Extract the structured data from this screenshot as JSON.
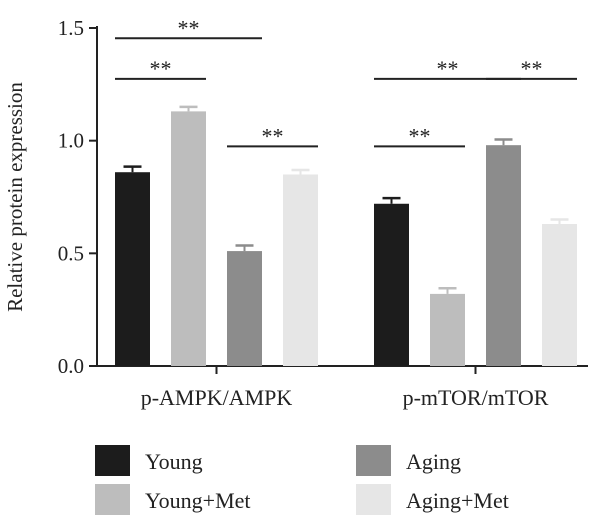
{
  "chart_data": {
    "type": "bar",
    "ylabel": "Relative protein expression",
    "xlabel": "",
    "ylim": [
      0,
      1.5
    ],
    "yticks": [
      "0.0",
      "0.5",
      "1.0",
      "1.5"
    ],
    "categories": [
      "p-AMPK/AMPK",
      "p-mTOR/mTOR"
    ],
    "series": [
      {
        "name": "Young",
        "color": "#1c1c1c",
        "values": [
          0.86,
          0.72
        ],
        "errors": [
          0.025,
          0.025
        ]
      },
      {
        "name": "Young+Met",
        "color": "#bdbdbd",
        "values": [
          1.13,
          0.32
        ],
        "errors": [
          0.02,
          0.025
        ]
      },
      {
        "name": "Aging",
        "color": "#8c8c8c",
        "values": [
          0.51,
          0.98
        ],
        "errors": [
          0.025,
          0.025
        ]
      },
      {
        "name": "Aging+Met",
        "color": "#e6e6e6",
        "values": [
          0.85,
          0.63
        ],
        "errors": [
          0.02,
          0.02
        ]
      }
    ],
    "significance": [
      {
        "category": 0,
        "from": 0,
        "to": 2,
        "label": "**",
        "y": 1.49
      },
      {
        "category": 0,
        "from": 0,
        "to": 1,
        "label": "**",
        "y": 1.31
      },
      {
        "category": 0,
        "from": 2,
        "to": 3,
        "label": "**",
        "y": 1.01
      },
      {
        "category": 1,
        "from": 0,
        "to": 2,
        "label": "**",
        "y": 1.31
      },
      {
        "category": 1,
        "from": 2,
        "to": 3,
        "label": "**",
        "y": 1.31
      },
      {
        "category": 1,
        "from": 0,
        "to": 1,
        "label": "**",
        "y": 1.01
      }
    ],
    "legend_placement": "bottom",
    "grid": false
  }
}
